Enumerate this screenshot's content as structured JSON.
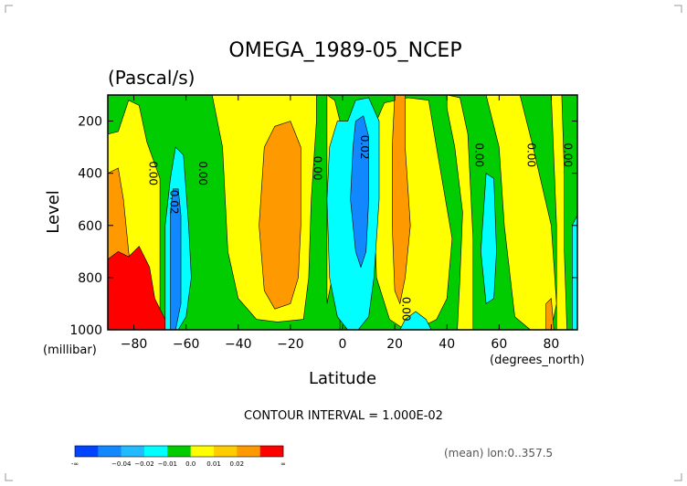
{
  "chart_data": {
    "type": "heatmap",
    "title": "OMEGA_1989-05_NCEP",
    "subtitle": "(Pascal/s)",
    "xlabel": "Latitude",
    "xunits": "(degrees_north)",
    "ylabel": "Level",
    "yunits": "(millibar)",
    "xlim": [
      -90,
      90
    ],
    "ylim": [
      1000,
      100
    ],
    "x_ticks": [
      -80,
      -60,
      -40,
      -20,
      0,
      20,
      40,
      60,
      80
    ],
    "x_tick_labels": [
      "−80",
      "−60",
      "−40",
      "−20",
      "0",
      "20",
      "40",
      "60",
      "80"
    ],
    "y_ticks": [
      200,
      400,
      600,
      800,
      1000
    ],
    "y_tick_labels": [
      "200",
      "400",
      "600",
      "800",
      "1000"
    ],
    "contour_interval_text": "CONTOUR INTERVAL = 1.000E-02",
    "averaging_text": "(mean) lon:0..357.5",
    "contour_labels": [
      {
        "text": "0.00",
        "x": -74,
        "y": 400
      },
      {
        "text": "0.02",
        "x": -66,
        "y": 510
      },
      {
        "text": "0.00",
        "x": -55,
        "y": 400
      },
      {
        "text": "0.00",
        "x": -11,
        "y": 380
      },
      {
        "text": "0.02",
        "x": 7,
        "y": 300
      },
      {
        "text": "0.00",
        "x": 23,
        "y": 920
      },
      {
        "text": "0.00",
        "x": 51,
        "y": 330
      },
      {
        "text": "0.00",
        "x": 71,
        "y": 330
      },
      {
        "text": "0.00",
        "x": 85,
        "y": 330
      }
    ],
    "regions": [
      {
        "level": "-0.01..0.0",
        "color": "#00cc00",
        "poly": [
          [
            -90,
            100
          ],
          [
            90,
            100
          ],
          [
            90,
            1000
          ],
          [
            -90,
            1000
          ]
        ]
      },
      {
        "level": "0.0..0.01",
        "color": "#ffff00",
        "poly": [
          [
            -90,
            250
          ],
          [
            -86,
            240
          ],
          [
            -82,
            120
          ],
          [
            -78,
            140
          ],
          [
            -75,
            280
          ],
          [
            -70,
            420
          ],
          [
            -70,
            1000
          ],
          [
            -90,
            1000
          ]
        ]
      },
      {
        "level": "0.0..0.01",
        "color": "#ffff00",
        "poly": [
          [
            -60,
            100
          ],
          [
            -50,
            100
          ],
          [
            -46,
            300
          ],
          [
            -44,
            700
          ],
          [
            -40,
            880
          ],
          [
            -33,
            960
          ],
          [
            -25,
            970
          ],
          [
            -15,
            960
          ],
          [
            -13,
            800
          ],
          [
            -12,
            500
          ],
          [
            -10,
            200
          ],
          [
            -10,
            100
          ]
        ]
      },
      {
        "level": "0.0..0.01",
        "color": "#ffff00",
        "poly": [
          [
            -6,
            100
          ],
          [
            -3,
            120
          ],
          [
            -1,
            200
          ],
          [
            -1,
            600
          ],
          [
            -4,
            800
          ],
          [
            -6,
            900
          ]
        ]
      },
      {
        "level": "0.0..0.01",
        "color": "#ffff00",
        "poly": [
          [
            13,
            200
          ],
          [
            16,
            130
          ],
          [
            25,
            110
          ],
          [
            33,
            120
          ],
          [
            36,
            300
          ],
          [
            42,
            650
          ],
          [
            40,
            880
          ],
          [
            36,
            960
          ],
          [
            30,
            990
          ],
          [
            24,
            1000
          ],
          [
            18,
            960
          ],
          [
            13,
            800
          ],
          [
            12,
            500
          ]
        ]
      },
      {
        "level": "0.0..0.01",
        "color": "#ffff00",
        "poly": [
          [
            40,
            100
          ],
          [
            45,
            110
          ],
          [
            48,
            250
          ],
          [
            50,
            650
          ],
          [
            50,
            1000
          ],
          [
            44,
            1000
          ],
          [
            45,
            800
          ],
          [
            46,
            550
          ],
          [
            43,
            300
          ],
          [
            40,
            150
          ]
        ]
      },
      {
        "level": "0.0..0.01",
        "color": "#ffff00",
        "poly": [
          [
            55,
            100
          ],
          [
            68,
            100
          ],
          [
            73,
            300
          ],
          [
            80,
            600
          ],
          [
            82,
            900
          ],
          [
            80,
            1000
          ],
          [
            72,
            1000
          ],
          [
            66,
            950
          ],
          [
            62,
            600
          ],
          [
            60,
            300
          ]
        ]
      },
      {
        "level": "0.0..0.01",
        "color": "#ffff00",
        "poly": [
          [
            80,
            100
          ],
          [
            84,
            100
          ],
          [
            85,
            400
          ],
          [
            85,
            700
          ],
          [
            86,
            1000
          ],
          [
            82,
            1000
          ],
          [
            82,
            600
          ]
        ]
      },
      {
        "level": "0.01..0.02",
        "color": "#ff9900",
        "poly": [
          [
            -90,
            400
          ],
          [
            -86,
            380
          ],
          [
            -84,
            500
          ],
          [
            -82,
            700
          ],
          [
            -80,
            900
          ],
          [
            -80,
            1000
          ],
          [
            -90,
            1000
          ]
        ]
      },
      {
        "level": "0.01..0.02",
        "color": "#ff9900",
        "poly": [
          [
            -30,
            300
          ],
          [
            -26,
            220
          ],
          [
            -20,
            200
          ],
          [
            -16,
            300
          ],
          [
            -16,
            600
          ],
          [
            -17,
            800
          ],
          [
            -20,
            900
          ],
          [
            -26,
            920
          ],
          [
            -30,
            850
          ],
          [
            -32,
            600
          ]
        ]
      },
      {
        "level": "0.01..0.02",
        "color": "#ff9900",
        "poly": [
          [
            20,
            100
          ],
          [
            24,
            100
          ],
          [
            24,
            300
          ],
          [
            26,
            600
          ],
          [
            24,
            800
          ],
          [
            22,
            900
          ],
          [
            20,
            850
          ],
          [
            19,
            600
          ],
          [
            19,
            300
          ]
        ]
      },
      {
        "level": "0.01..0.02",
        "color": "#ff9900",
        "poly": [
          [
            78,
            900
          ],
          [
            80,
            880
          ],
          [
            81,
            1000
          ],
          [
            78,
            1000
          ]
        ]
      },
      {
        "level": "0.02..inf",
        "color": "#ff0000",
        "poly": [
          [
            -90,
            730
          ],
          [
            -86,
            700
          ],
          [
            -82,
            720
          ],
          [
            -78,
            680
          ],
          [
            -74,
            760
          ],
          [
            -72,
            880
          ],
          [
            -68,
            960
          ],
          [
            -66,
            1000
          ],
          [
            -90,
            1000
          ]
        ]
      },
      {
        "level": "-0.01..0.0",
        "color": "#00cc00",
        "poly": [
          [
            -1,
            900
          ],
          [
            -1,
            1000
          ],
          [
            1,
            1000
          ],
          [
            1,
            900
          ]
        ]
      },
      {
        "level": "-0.02..-0.01",
        "color": "#00ffff",
        "poly": [
          [
            -68,
            600
          ],
          [
            -66,
            420
          ],
          [
            -64,
            300
          ],
          [
            -61,
            330
          ],
          [
            -59,
            600
          ],
          [
            -58,
            800
          ],
          [
            -60,
            950
          ],
          [
            -63,
            1000
          ],
          [
            -68,
            1000
          ]
        ]
      },
      {
        "level": "-0.02..-0.01",
        "color": "#00ffff",
        "poly": [
          [
            -5,
            300
          ],
          [
            -2,
            200
          ],
          [
            2,
            200
          ],
          [
            5,
            120
          ],
          [
            10,
            110
          ],
          [
            14,
            200
          ],
          [
            14,
            500
          ],
          [
            12,
            800
          ],
          [
            10,
            950
          ],
          [
            6,
            1000
          ],
          [
            2,
            1000
          ],
          [
            -2,
            950
          ],
          [
            -5,
            800
          ],
          [
            -6,
            500
          ]
        ]
      },
      {
        "level": "-0.02..-0.01",
        "color": "#00ffff",
        "poly": [
          [
            24,
            960
          ],
          [
            28,
            930
          ],
          [
            32,
            960
          ],
          [
            34,
            1000
          ],
          [
            22,
            1000
          ]
        ]
      },
      {
        "level": "-0.02..-0.01",
        "color": "#00ffff",
        "poly": [
          [
            55,
            400
          ],
          [
            58,
            420
          ],
          [
            59,
            700
          ],
          [
            58,
            880
          ],
          [
            55,
            900
          ],
          [
            53,
            700
          ]
        ]
      },
      {
        "level": "-0.02..-0.01",
        "color": "#00ffff",
        "poly": [
          [
            88,
            600
          ],
          [
            90,
            560
          ],
          [
            90,
            1000
          ],
          [
            88,
            1000
          ]
        ]
      },
      {
        "level": "-0.03..-0.02",
        "color": "#1188ff",
        "poly": [
          [
            -66,
            550
          ],
          [
            -65,
            460
          ],
          [
            -63,
            460
          ],
          [
            -62,
            560
          ],
          [
            -62,
            900
          ],
          [
            -64,
            1000
          ],
          [
            -66,
            1000
          ]
        ]
      },
      {
        "level": "-0.03..-0.02",
        "color": "#1188ff",
        "poly": [
          [
            4,
            300
          ],
          [
            5,
            200
          ],
          [
            8,
            180
          ],
          [
            10,
            260
          ],
          [
            10,
            500
          ],
          [
            9,
            700
          ],
          [
            7,
            760
          ],
          [
            5,
            700
          ],
          [
            3,
            500
          ]
        ]
      }
    ],
    "colorbar": {
      "colors": [
        "#0044ff",
        "#1188ff",
        "#22bbff",
        "#00ffff",
        "#00cc00",
        "#ffff00",
        "#ffcc00",
        "#ff9900",
        "#ff0000"
      ],
      "labels": [
        "-∞",
        "−0.04",
        "−0.02",
        "−0.01",
        "0.0",
        "0.01",
        "0.02",
        "∞"
      ]
    }
  }
}
